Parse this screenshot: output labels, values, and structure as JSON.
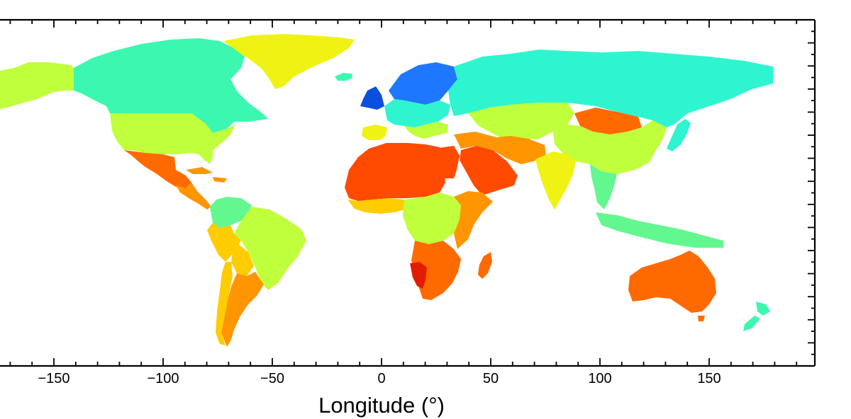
{
  "figure": {
    "xlabel": "Longitude (°)",
    "x_ticks": [
      "−150",
      "−100",
      "−50",
      "0",
      "50",
      "100",
      "150"
    ],
    "xlim": [
      -175,
      197
    ],
    "ylim": [
      -60,
      85
    ],
    "colormap": "jet",
    "colors": {
      "deep_blue": "#0a4fe0",
      "blue": "#1e78ff",
      "cyan": "#2ef5d0",
      "aqua_green": "#3cf7b0",
      "green": "#63f790",
      "yellow_green": "#c0ff3c",
      "yellow": "#f0f214",
      "gold": "#ffcc00",
      "orange": "#ff9500",
      "dark_orange": "#ff6a00",
      "red_orange": "#ff4a00",
      "red": "#e31c00"
    },
    "regions": [
      {
        "name": "Alaska",
        "color": "yellow_green"
      },
      {
        "name": "Canada",
        "color": "aqua_green"
      },
      {
        "name": "Greenland",
        "color": "yellow"
      },
      {
        "name": "Iceland",
        "color": "aqua_green"
      },
      {
        "name": "United States",
        "color": "yellow_green"
      },
      {
        "name": "Mexico",
        "color": "dark_orange"
      },
      {
        "name": "Central America",
        "color": "orange"
      },
      {
        "name": "Colombia",
        "color": "green"
      },
      {
        "name": "Brazil",
        "color": "yellow_green"
      },
      {
        "name": "Peru",
        "color": "gold"
      },
      {
        "name": "Bolivia",
        "color": "gold"
      },
      {
        "name": "Argentina",
        "color": "orange"
      },
      {
        "name": "Chile",
        "color": "gold"
      },
      {
        "name": "Scandinavia",
        "color": "blue"
      },
      {
        "name": "United Kingdom",
        "color": "deep_blue"
      },
      {
        "name": "Western Europe",
        "color": "cyan"
      },
      {
        "name": "Iberia",
        "color": "yellow"
      },
      {
        "name": "Russia",
        "color": "cyan"
      },
      {
        "name": "Kazakhstan",
        "color": "yellow_green"
      },
      {
        "name": "Mongolia",
        "color": "dark_orange"
      },
      {
        "name": "China",
        "color": "yellow_green"
      },
      {
        "name": "Japan",
        "color": "cyan"
      },
      {
        "name": "North Africa",
        "color": "red_orange"
      },
      {
        "name": "Egypt",
        "color": "red_orange"
      },
      {
        "name": "Arabian Peninsula",
        "color": "red_orange"
      },
      {
        "name": "Iran",
        "color": "orange"
      },
      {
        "name": "India",
        "color": "yellow"
      },
      {
        "name": "Southeast Asia",
        "color": "green"
      },
      {
        "name": "Indonesia",
        "color": "green"
      },
      {
        "name": "West Africa",
        "color": "gold"
      },
      {
        "name": "Central Africa",
        "color": "yellow_green"
      },
      {
        "name": "East Africa",
        "color": "orange"
      },
      {
        "name": "Southern Africa",
        "color": "dark_orange"
      },
      {
        "name": "Namibia",
        "color": "red"
      },
      {
        "name": "Madagascar",
        "color": "dark_orange"
      },
      {
        "name": "Australia",
        "color": "dark_orange"
      },
      {
        "name": "New Zealand",
        "color": "aqua_green"
      }
    ]
  }
}
